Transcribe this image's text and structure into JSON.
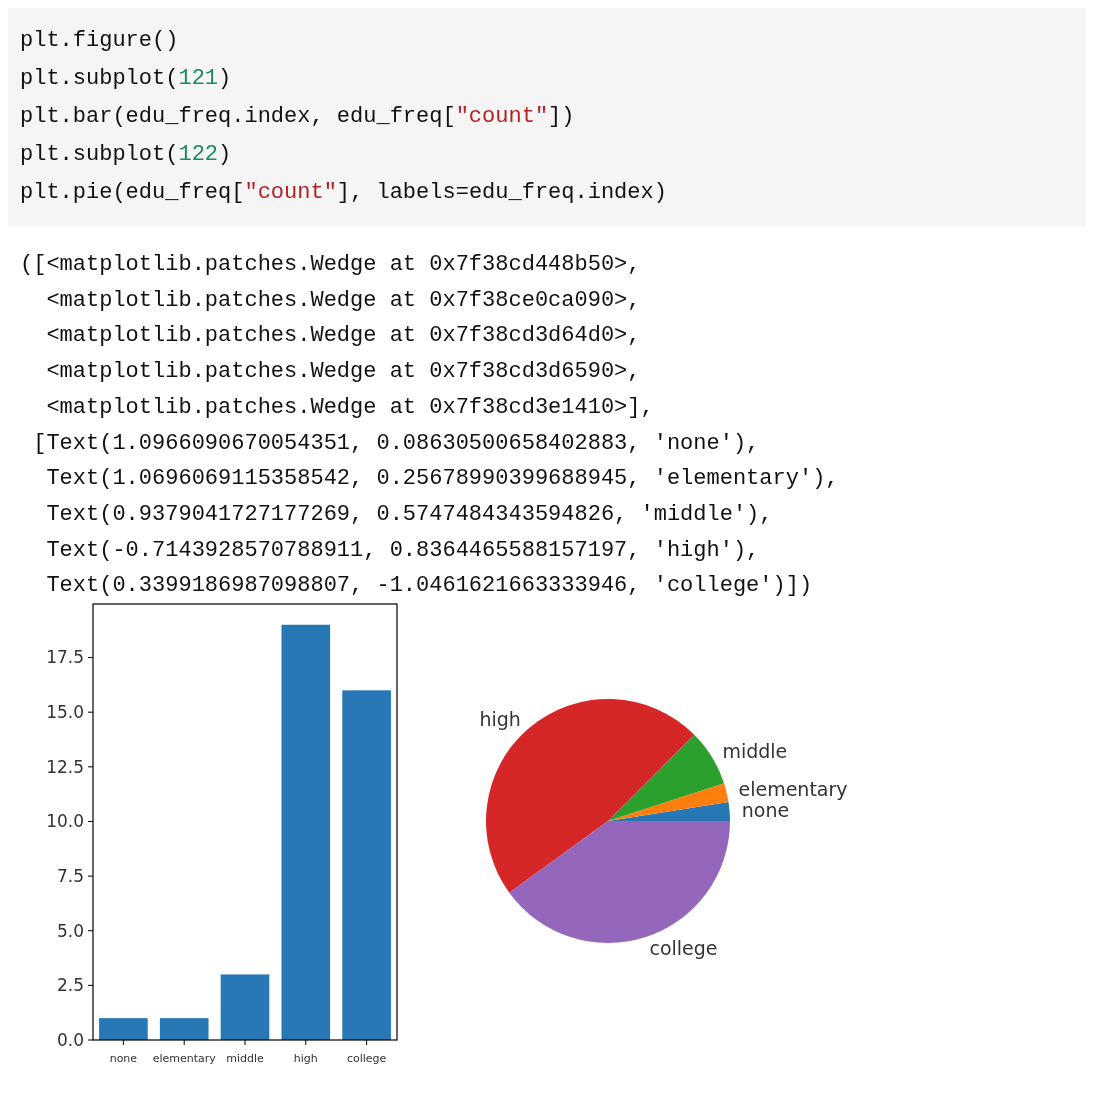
{
  "chart_data": [
    {
      "type": "bar",
      "categories": [
        "none",
        "elementary",
        "middle",
        "high",
        "college"
      ],
      "values": [
        1,
        1,
        3,
        19,
        16
      ],
      "color": "#2878b5",
      "ylim": [
        0,
        19.95
      ],
      "yticks": [
        {
          "value": 0,
          "label": "0.0"
        },
        {
          "value": 2.5,
          "label": "2.5"
        },
        {
          "value": 5,
          "label": "5.0"
        },
        {
          "value": 7.5,
          "label": "7.5"
        },
        {
          "value": 10,
          "label": "10.0"
        },
        {
          "value": 12.5,
          "label": "12.5"
        },
        {
          "value": 15,
          "label": "15.0"
        },
        {
          "value": 17.5,
          "label": "17.5"
        }
      ],
      "grid": false,
      "annotations": [
        "plt.figure()",
        "plt.subplot(121)",
        "plt.bar(edu_freq.index, edu_freq[\"count\"])",
        "plt.subplot(122)",
        "plt.pie(edu_freq[\"count\"], labels=edu_freq.index)",
        "([<matplotlib.patches.Wedge at 0x7f38cd448b50>,",
        "  <matplotlib.patches.Wedge at 0x7f38ce0ca090>,",
        "  <matplotlib.patches.Wedge at 0x7f38cd3d64d0>,",
        "  <matplotlib.patches.Wedge at 0x7f38cd3d6590>,",
        "  <matplotlib.patches.Wedge at 0x7f38cd3e1410>],",
        " [Text(1.0966090670054351, 0.08630500658402883, 'none'),",
        "  Text(1.0696069115358542, 0.25678990399688945, 'elementary'),",
        "  Text(0.9379041727177269, 0.5747484343594826, 'middle'),",
        "  Text(-0.7143928570788911, 0.8364465588157197, 'high'),",
        "  Text(0.3399186987098807, -1.0461621663333946, 'college')])"
      ]
    },
    {
      "type": "pie",
      "categories": [
        "none",
        "elementary",
        "middle",
        "high",
        "college"
      ],
      "values": [
        2.5,
        2.5,
        7.5,
        47.5,
        40
      ],
      "colors": [
        "#2878b5",
        "#ff7f0e",
        "#2ca02c",
        "#d62728",
        "#9467bd"
      ]
    }
  ]
}
